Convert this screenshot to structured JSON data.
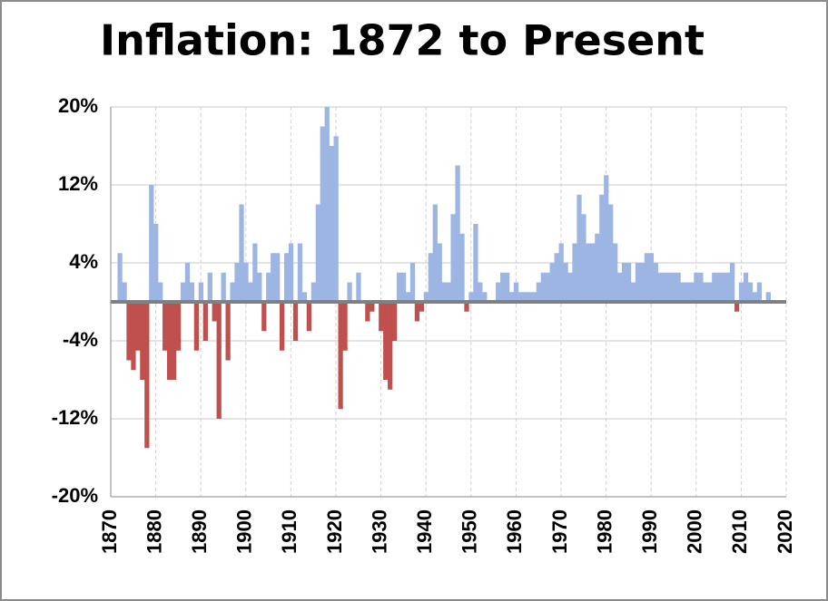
{
  "chart_data": {
    "type": "bar",
    "title": "Inflation: 1872 to Present",
    "x": [
      1872,
      1873,
      1874,
      1875,
      1876,
      1877,
      1878,
      1879,
      1880,
      1881,
      1882,
      1883,
      1884,
      1885,
      1886,
      1887,
      1888,
      1889,
      1890,
      1891,
      1892,
      1893,
      1894,
      1895,
      1896,
      1897,
      1898,
      1899,
      1900,
      1901,
      1902,
      1903,
      1904,
      1905,
      1906,
      1907,
      1908,
      1909,
      1910,
      1911,
      1912,
      1913,
      1914,
      1915,
      1916,
      1917,
      1918,
      1919,
      1920,
      1921,
      1922,
      1923,
      1924,
      1925,
      1926,
      1927,
      1928,
      1929,
      1930,
      1931,
      1932,
      1933,
      1934,
      1935,
      1936,
      1937,
      1938,
      1939,
      1940,
      1941,
      1942,
      1943,
      1944,
      1945,
      1946,
      1947,
      1948,
      1949,
      1950,
      1951,
      1952,
      1953,
      1954,
      1955,
      1956,
      1957,
      1958,
      1959,
      1960,
      1961,
      1962,
      1963,
      1964,
      1965,
      1966,
      1967,
      1968,
      1969,
      1970,
      1971,
      1972,
      1973,
      1974,
      1975,
      1976,
      1977,
      1978,
      1979,
      1980,
      1981,
      1982,
      1983,
      1984,
      1985,
      1986,
      1987,
      1988,
      1989,
      1990,
      1991,
      1992,
      1993,
      1994,
      1995,
      1996,
      1997,
      1998,
      1999,
      2000,
      2001,
      2002,
      2003,
      2004,
      2005,
      2006,
      2007,
      2008,
      2009,
      2010,
      2011,
      2012,
      2013,
      2014,
      2015,
      2016
    ],
    "values": [
      5,
      2,
      -6,
      -7,
      -5,
      -8,
      -15,
      12,
      8,
      2,
      -5,
      -8,
      -8,
      -5,
      2,
      4,
      2,
      -5,
      2,
      -4,
      3,
      -2,
      -12,
      3,
      -6,
      2,
      4,
      10,
      4,
      2,
      6,
      3,
      -3,
      3,
      5,
      5,
      -5,
      5,
      6,
      -4,
      6,
      1,
      -3,
      2,
      10,
      18,
      20,
      16,
      17,
      -11,
      -5,
      2,
      0,
      3,
      0,
      -2,
      -1,
      0,
      -3,
      -8,
      -9,
      -4,
      3,
      3,
      1,
      4,
      -2,
      -1,
      1,
      5,
      10,
      6,
      2,
      2,
      9,
      14,
      7,
      -1,
      1,
      8,
      2,
      1,
      0,
      0,
      2,
      3,
      3,
      1,
      2,
      1,
      1,
      1,
      1,
      2,
      3,
      3,
      4,
      5,
      6,
      4,
      3,
      6,
      11,
      9,
      6,
      6,
      7,
      11,
      13,
      10,
      6,
      3,
      4,
      4,
      2,
      4,
      4,
      5,
      5,
      4,
      3,
      3,
      3,
      3,
      3,
      2,
      2,
      2,
      3,
      3,
      2,
      2,
      3,
      3,
      3,
      3,
      4,
      -1,
      2,
      3,
      2,
      1,
      2,
      0,
      1
    ],
    "color": "#9db5e2",
    "negative_color": "#c0504d",
    "xlim": [
      1870,
      2020
    ],
    "xticks": [
      1870,
      1880,
      1890,
      1900,
      1910,
      1920,
      1930,
      1940,
      1950,
      1960,
      1970,
      1980,
      1990,
      2000,
      2010,
      2020
    ],
    "ylim": [
      -20,
      20
    ],
    "yticks": [
      {
        "value": -20,
        "label": "-20%"
      },
      {
        "value": -12,
        "label": "-12%"
      },
      {
        "value": -4,
        "label": "-4%"
      },
      {
        "value": 4,
        "label": "4%"
      },
      {
        "value": 12,
        "label": "12%"
      },
      {
        "value": 20,
        "label": "20%"
      }
    ],
    "grid": true
  }
}
